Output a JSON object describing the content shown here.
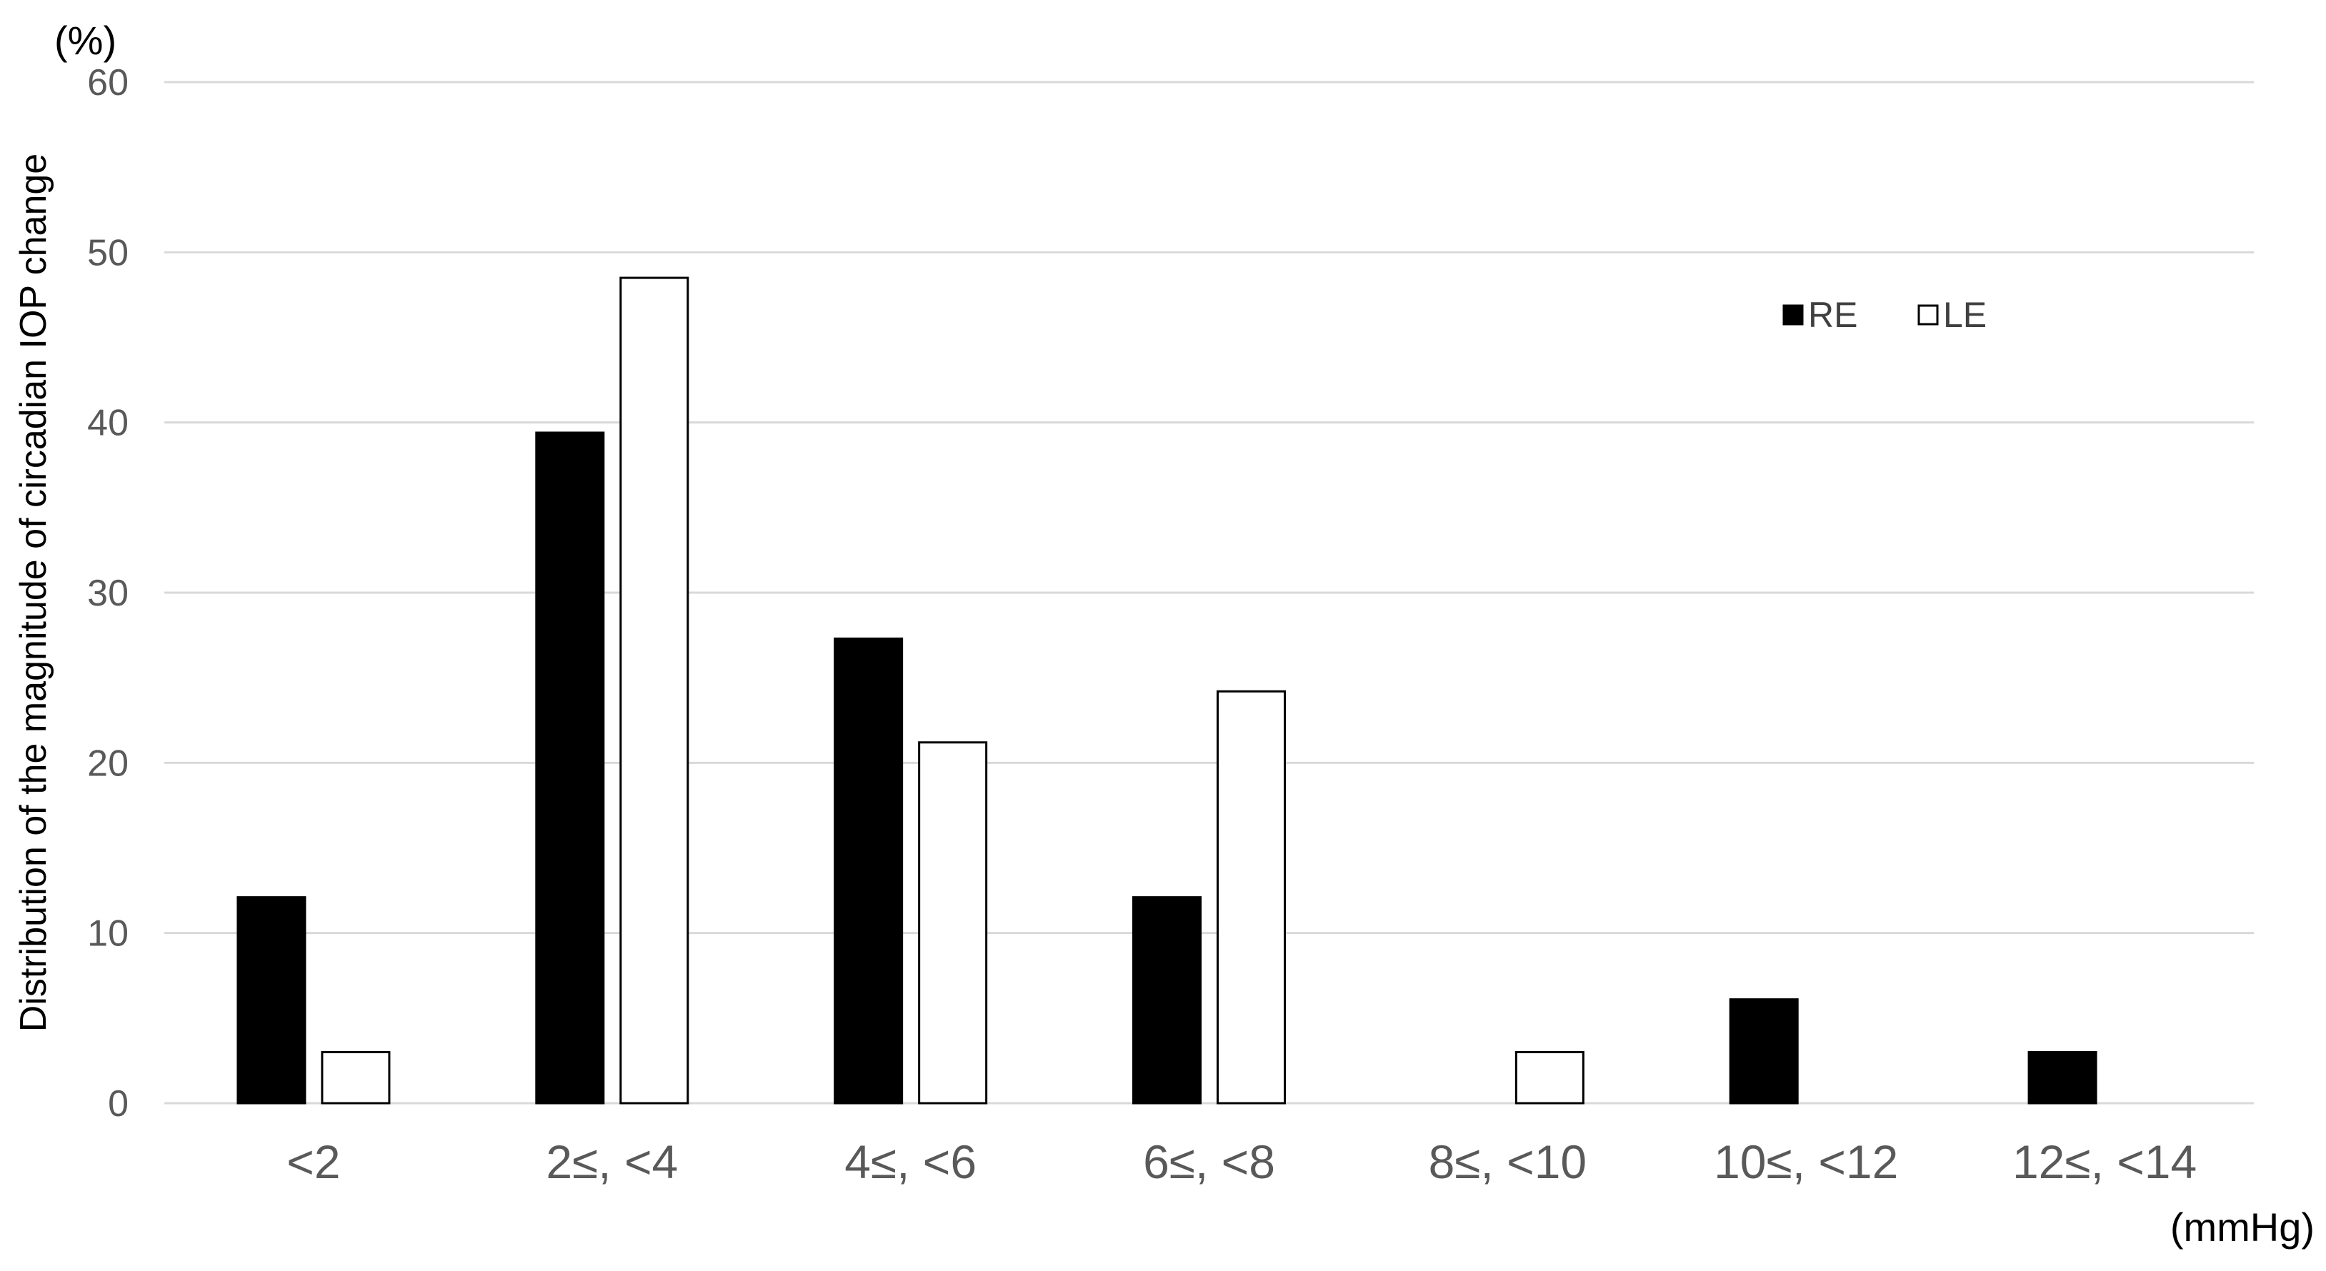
{
  "chart_data": {
    "type": "bar",
    "title": "",
    "ylabel": "Distribution of the magnitude of circadian IOP change",
    "y_unit": "(%)",
    "xlabel": "",
    "x_unit": "(mmHg)",
    "ylim": [
      0,
      60
    ],
    "yticks": [
      0,
      10,
      20,
      30,
      40,
      50,
      60
    ],
    "grid": true,
    "legend_position": "top-right",
    "categories": [
      "<2",
      "2≤, <4",
      "4≤, <6",
      "6≤, <8",
      "8≤, <10",
      "10≤, <12",
      "12≤, <14"
    ],
    "series": [
      {
        "name": "RE",
        "fill": "#000000",
        "values": [
          12.1,
          39.4,
          27.3,
          12.1,
          0,
          6.1,
          3.0
        ]
      },
      {
        "name": "LE",
        "fill": "#ffffff",
        "values": [
          3.0,
          48.5,
          21.2,
          24.2,
          3.0,
          0,
          0
        ]
      }
    ]
  }
}
